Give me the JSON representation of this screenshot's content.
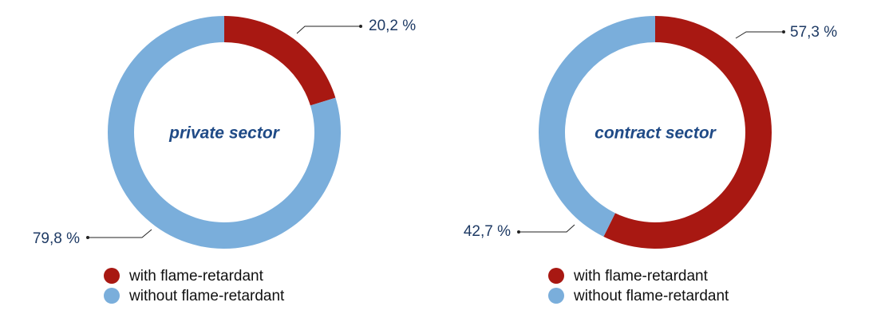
{
  "chart_data": [
    {
      "type": "donut",
      "title": "private sector",
      "categories": [
        "with flame-retardant",
        "without flame-retardant"
      ],
      "values": [
        20.2,
        79.8
      ],
      "value_labels": [
        "20,2 %",
        "79,8 %"
      ],
      "colors": [
        "#a81812",
        "#7aaedb"
      ]
    },
    {
      "type": "donut",
      "title": "contract sector",
      "categories": [
        "with flame-retardant",
        "without flame-retardant"
      ],
      "values": [
        57.3,
        42.7
      ],
      "value_labels": [
        "57,3 %",
        "42,7 %"
      ],
      "colors": [
        "#a81812",
        "#7aaedb"
      ]
    }
  ]
}
